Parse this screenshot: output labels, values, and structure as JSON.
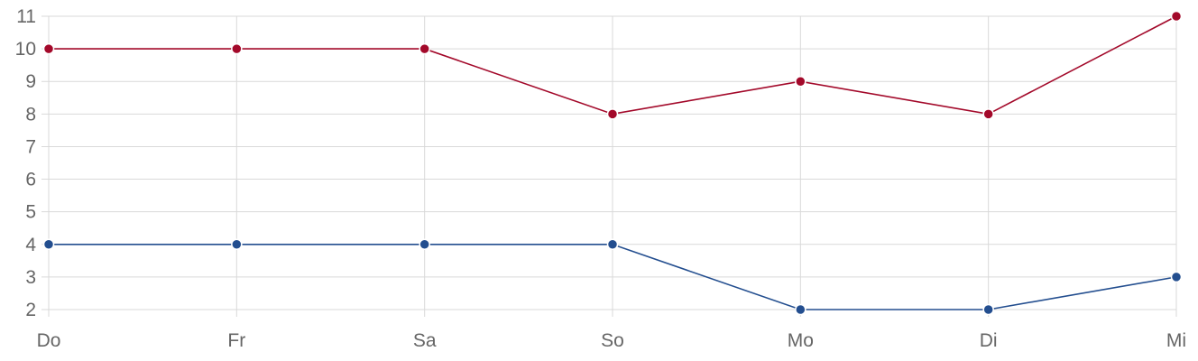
{
  "chart_data": {
    "type": "line",
    "title": "",
    "xlabel": "",
    "ylabel": "",
    "categories": [
      "Do",
      "Fr",
      "Sa",
      "So",
      "Mo",
      "Di",
      "Mi"
    ],
    "y_ticks": [
      2,
      3,
      4,
      5,
      6,
      7,
      8,
      9,
      10,
      11
    ],
    "ylim": [
      2,
      11
    ],
    "grid": true,
    "legend": "none",
    "series": [
      {
        "values": [
          10,
          10,
          10,
          8,
          9,
          8,
          11
        ],
        "color": "#a3092a"
      },
      {
        "values": [
          4,
          4,
          4,
          4,
          2,
          2,
          3
        ],
        "color": "#234e8f"
      }
    ]
  }
}
